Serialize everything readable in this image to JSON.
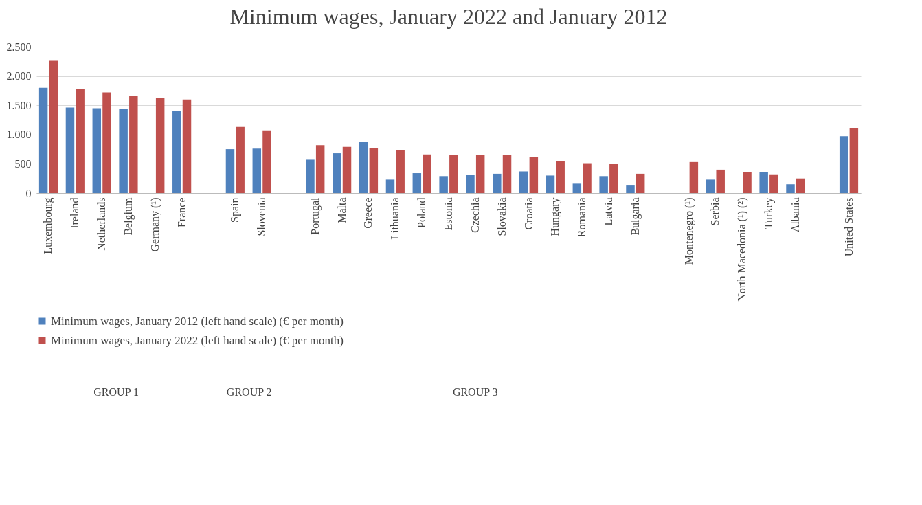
{
  "chart_data": {
    "type": "bar",
    "title": "Minimum wages, January 2022 and January 2012",
    "categories": [
      "Luxembourg",
      "Ireland",
      "Netherlands",
      "Belgium",
      "Germany (¹)",
      "France",
      null,
      "Spain",
      "Slovenia",
      null,
      "Portugal",
      "Malta",
      "Greece",
      "Lithuania",
      "Poland",
      "Estonia",
      "Czechia",
      "Slovakia",
      "Croatia",
      "Hungary",
      "Romania",
      "Latvia",
      "Bulgaria",
      null,
      "Montenegro (¹)",
      "Serbia",
      "North Macedonia (¹) (²)",
      "Turkey",
      "Albania",
      null,
      "United States"
    ],
    "series": [
      {
        "name": "Minimum wages, January 2012 (left hand scale) (€ per month)",
        "color": "#4f81bd",
        "values": [
          1800,
          1460,
          1450,
          1440,
          null,
          1400,
          null,
          750,
          760,
          null,
          570,
          680,
          880,
          230,
          340,
          290,
          310,
          330,
          370,
          300,
          160,
          290,
          140,
          null,
          null,
          230,
          null,
          360,
          150,
          null,
          970
        ]
      },
      {
        "name": "Minimum wages, January 2022 (left hand scale) (€ per month)",
        "color": "#c0504d",
        "values": [
          2260,
          1780,
          1720,
          1660,
          1620,
          1600,
          null,
          1130,
          1070,
          null,
          820,
          790,
          770,
          730,
          660,
          650,
          650,
          650,
          620,
          540,
          510,
          500,
          330,
          null,
          530,
          400,
          360,
          320,
          250,
          null,
          1110
        ]
      }
    ],
    "ylim": [
      0,
      2500
    ],
    "yticks": [
      0,
      500,
      {
        "value": 1000,
        "label": "1.000"
      },
      {
        "value": 1500,
        "label": "1.500"
      },
      {
        "value": 2000,
        "label": "2.000"
      },
      {
        "value": 2500,
        "label": "2.500"
      }
    ],
    "grid": "y",
    "legend": "bottom",
    "annotations": [
      "GROUP 1",
      "GROUP 2",
      "GROUP 3"
    ]
  }
}
